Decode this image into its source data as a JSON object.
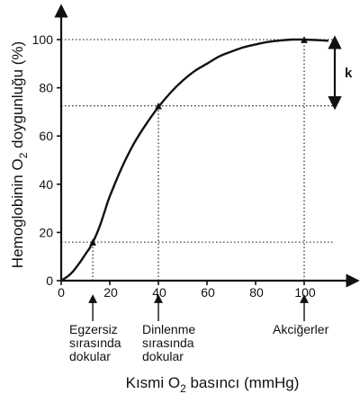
{
  "chart_data": {
    "type": "line",
    "ylabel_pre": "Hemoglobinin O",
    "ylabel_sub": "2",
    "ylabel_post": " doygunluğu (%)",
    "xlabel_pre": "Kısmi O",
    "xlabel_sub": "2",
    "xlabel_post": " basıncı (mmHg)",
    "xlim": [
      0,
      110
    ],
    "ylim": [
      0,
      100
    ],
    "x_ticks": [
      0,
      20,
      40,
      60,
      80,
      100
    ],
    "y_ticks": [
      0,
      20,
      40,
      60,
      80,
      100
    ],
    "x_tick_labels": [
      "0",
      "20",
      "40",
      "60",
      "80",
      "100"
    ],
    "y_tick_labels": [
      "0",
      "20",
      "40",
      "60",
      "80",
      "100"
    ],
    "grid": false,
    "series": [
      {
        "x": [
          0,
          3,
          5,
          8,
          10,
          12,
          14,
          16,
          18,
          20,
          25,
          30,
          35,
          40,
          45,
          50,
          55,
          60,
          65,
          70,
          75,
          80,
          85,
          90,
          95,
          100,
          105,
          110
        ],
        "y": [
          0,
          2,
          4,
          8,
          11,
          14,
          18,
          23,
          29,
          35,
          47,
          57,
          65,
          72,
          78,
          83,
          87,
          90,
          93,
          95,
          96.8,
          98,
          99,
          99.6,
          100,
          100,
          99.8,
          99.5
        ]
      }
    ],
    "reference_points": [
      {
        "x": 13,
        "y": 16
      },
      {
        "x": 40,
        "y": 72.5
      },
      {
        "x": 100,
        "y": 100
      }
    ],
    "annotations": {
      "exercise_tissue": [
        "Egzersiz",
        "sırasında",
        "dokular"
      ],
      "resting_tissue": [
        "Dinlenme",
        "sırasında",
        "dokular"
      ],
      "lungs": [
        "Akciğerler"
      ],
      "k_label": "k"
    }
  }
}
